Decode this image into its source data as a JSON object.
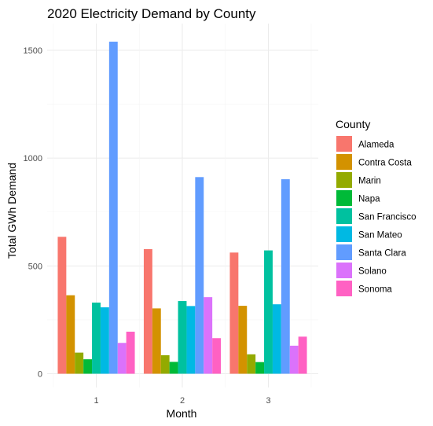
{
  "chart_data": {
    "type": "bar",
    "title": "2020 Electricity Demand by County",
    "xlabel": "Month",
    "ylabel": "Total GWh Demand",
    "categories": [
      "1",
      "2",
      "3"
    ],
    "ylim": [
      0,
      1600
    ],
    "yticks": [
      0,
      500,
      1000,
      1500
    ],
    "grid": true,
    "legend_title": "County",
    "legend_position": "right",
    "series": [
      {
        "name": "Alameda",
        "color": "#F8766D",
        "values": [
          635,
          578,
          562
        ]
      },
      {
        "name": "Contra Costa",
        "color": "#D39200",
        "values": [
          364,
          303,
          315
        ]
      },
      {
        "name": "Marin",
        "color": "#93AA00",
        "values": [
          98,
          86,
          90
        ]
      },
      {
        "name": "Napa",
        "color": "#00BA38",
        "values": [
          67,
          55,
          54
        ]
      },
      {
        "name": "San Francisco",
        "color": "#00C19F",
        "values": [
          330,
          337,
          572
        ]
      },
      {
        "name": "San Mateo",
        "color": "#00B9E3",
        "values": [
          308,
          314,
          322
        ]
      },
      {
        "name": "Santa Clara",
        "color": "#619CFF",
        "values": [
          1540,
          912,
          902
        ]
      },
      {
        "name": "Solano",
        "color": "#DB72FB",
        "values": [
          143,
          355,
          130
        ]
      },
      {
        "name": "Sonoma",
        "color": "#FF61C3",
        "values": [
          195,
          165,
          172
        ]
      }
    ]
  }
}
